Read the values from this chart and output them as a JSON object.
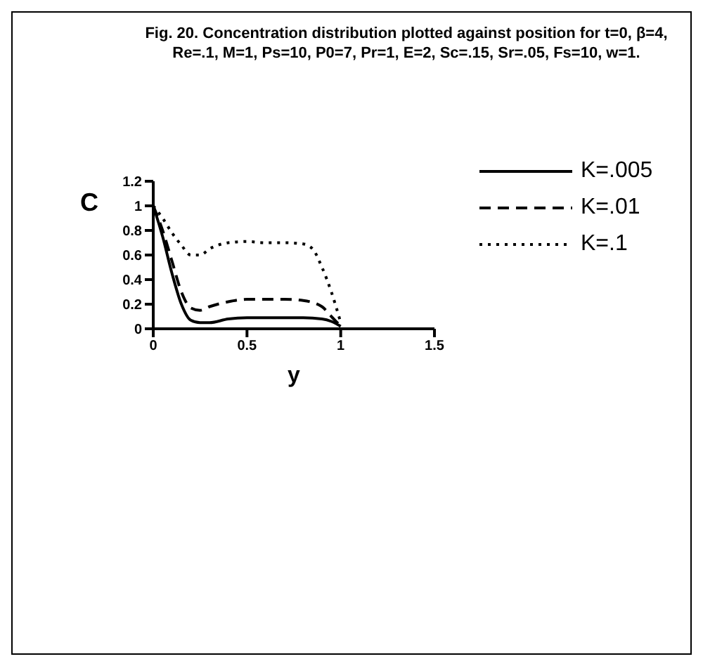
{
  "chart_data": {
    "type": "line",
    "title": "Fig. 20. Concentration distribution plotted against position for t=0, β=4, Re=.1, M=1, Ps=10, P0=7, Pr=1, E=2, Sc=.15, Sr=.05, Fs=10, w=1.",
    "xlabel": "y",
    "ylabel": "C",
    "series": [
      {
        "name": "K=.005",
        "color": "#000000",
        "line_style": "solid",
        "x": [
          0,
          0.05,
          0.1,
          0.15,
          0.2,
          0.25,
          0.3,
          0.4,
          0.5,
          0.6,
          0.7,
          0.8,
          0.9,
          0.95,
          1
        ],
        "values": [
          1,
          0.75,
          0.45,
          0.2,
          0.07,
          0.05,
          0.05,
          0.08,
          0.09,
          0.09,
          0.09,
          0.09,
          0.08,
          0.06,
          0.02
        ]
      },
      {
        "name": "K=.01",
        "color": "#000000",
        "line_style": "dashed",
        "x": [
          0,
          0.05,
          0.1,
          0.15,
          0.2,
          0.25,
          0.3,
          0.4,
          0.5,
          0.6,
          0.7,
          0.8,
          0.9,
          0.95,
          1
        ],
        "values": [
          1,
          0.8,
          0.55,
          0.3,
          0.17,
          0.15,
          0.18,
          0.22,
          0.24,
          0.24,
          0.24,
          0.23,
          0.18,
          0.1,
          0.02
        ]
      },
      {
        "name": "K=.1",
        "color": "#000000",
        "line_style": "dotted",
        "x": [
          0,
          0.05,
          0.1,
          0.15,
          0.2,
          0.25,
          0.3,
          0.4,
          0.5,
          0.6,
          0.7,
          0.8,
          0.85,
          0.9,
          0.95,
          1
        ],
        "values": [
          1,
          0.9,
          0.78,
          0.68,
          0.6,
          0.6,
          0.65,
          0.7,
          0.71,
          0.7,
          0.7,
          0.69,
          0.65,
          0.5,
          0.3,
          0.05
        ]
      }
    ],
    "xlim": [
      0,
      1.5
    ],
    "xticks": [
      0,
      0.5,
      1,
      1.5
    ],
    "ylim": [
      0,
      1.2
    ],
    "yticks": [
      0,
      0.2,
      0.4,
      0.6,
      0.8,
      1,
      1.2
    ],
    "grid": false,
    "legend": "top right"
  }
}
